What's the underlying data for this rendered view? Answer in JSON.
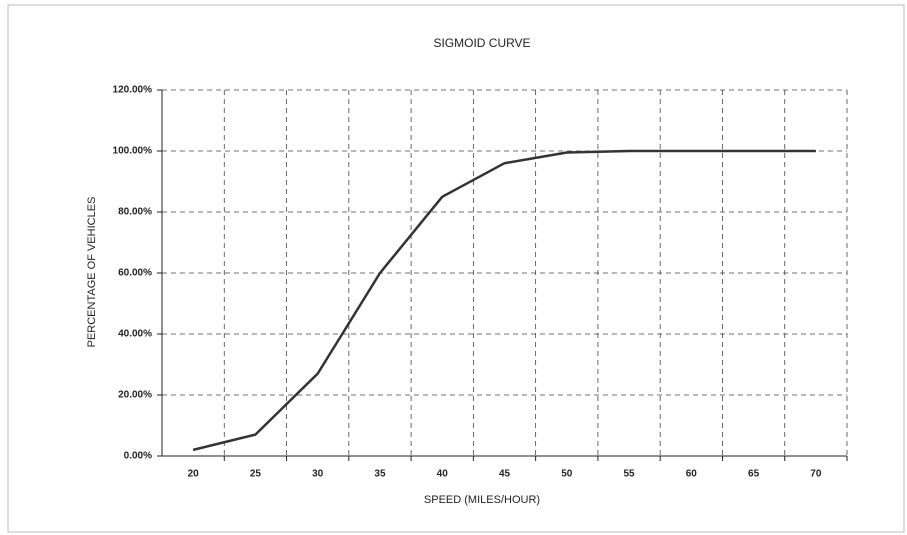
{
  "chart_data": {
    "type": "line",
    "title": "SIGMOID CURVE",
    "x_label": "SPEED (MILES/HOUR)",
    "y_label": "PERCENTAGE OF VEHICLES",
    "categories": [
      "20",
      "25",
      "30",
      "35",
      "40",
      "45",
      "50",
      "55",
      "60",
      "65",
      "70"
    ],
    "series": [
      {
        "name": "Percentage of vehicles",
        "color": "#333333",
        "values": [
          2,
          7,
          27,
          60,
          85,
          96,
          99.5,
          100,
          100,
          100,
          100
        ]
      }
    ],
    "ylim": [
      0,
      120
    ],
    "yticks": [
      {
        "value": 0,
        "label": "0.00%"
      },
      {
        "value": 20,
        "label": "20.00%"
      },
      {
        "value": 40,
        "label": "40.00%"
      },
      {
        "value": 60,
        "label": "60.00%"
      },
      {
        "value": 80,
        "label": "80.00%"
      },
      {
        "value": 100,
        "label": "100.00%"
      },
      {
        "value": 120,
        "label": "120.00%"
      }
    ],
    "grid": true,
    "legend": false
  }
}
